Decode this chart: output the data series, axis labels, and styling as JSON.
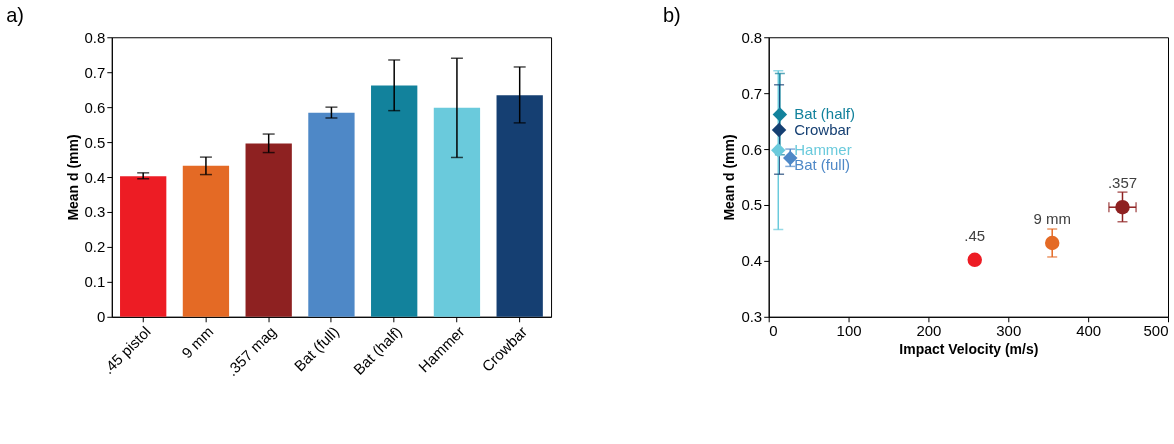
{
  "chart_data": [
    {
      "type": "bar",
      "title": "a)",
      "ylabel": "Mean d (mm)",
      "categories": [
        ".45 pistol",
        "9 mm",
        ".357 mag",
        "Bat (full)",
        "Bat (half)",
        "Hammer",
        "Crowbar"
      ],
      "values": [
        0.402,
        0.432,
        0.496,
        0.584,
        0.662,
        0.598,
        0.634
      ],
      "colors": [
        "#ed1c24",
        "#e46a25",
        "#8e2121",
        "#4e88c7",
        "#12829c",
        "#6acadc",
        "#153f72"
      ],
      "errors": [
        [
          0.395,
          0.412
        ],
        [
          0.407,
          0.457
        ],
        [
          0.47,
          0.523
        ],
        [
          0.569,
          0.6
        ],
        [
          0.59,
          0.735
        ],
        [
          0.456,
          0.74
        ],
        [
          0.555,
          0.715
        ]
      ],
      "ylim": [
        0,
        0.8
      ],
      "yticks": [
        0,
        0.1,
        0.2,
        0.3,
        0.4,
        0.5,
        0.6,
        0.7,
        0.8
      ],
      "grid": false
    },
    {
      "type": "scatter",
      "title": "b)",
      "xlabel": "Impact Velocity (m/s)",
      "ylabel": "Mean d (mm)",
      "xlim": [
        0,
        500
      ],
      "xticks": [
        0,
        100,
        200,
        300,
        400,
        500
      ],
      "ylim": [
        0.3,
        0.8
      ],
      "yticks": [
        0.3,
        0.4,
        0.5,
        0.6,
        0.7,
        0.8
      ],
      "grid": false,
      "series": [
        {
          "name": ".45",
          "color": "#ed1c24",
          "marker": "circle",
          "x": [
            258
          ],
          "values": [
            0.402
          ],
          "errors": [
            null
          ]
        },
        {
          "name": "9 mm",
          "color": "#e46a25",
          "marker": "circle",
          "x": [
            355
          ],
          "values": [
            0.432
          ],
          "errors": [
            [
              0.407,
              0.457
            ]
          ]
        },
        {
          "name": ".357",
          "color": "#8e2121",
          "marker": "circle",
          "x": [
            443
          ],
          "values": [
            0.496
          ],
          "errors": [
            [
              0.47,
              0.523
            ]
          ],
          "xerrors": [
            17
          ]
        },
        {
          "name": "Bat (half)",
          "color": "#12829c",
          "marker": "diamond",
          "x": [
            14
          ],
          "values": [
            0.662
          ],
          "errors": [
            [
              0.59,
              0.735
            ]
          ]
        },
        {
          "name": "Crowbar",
          "color": "#153f72",
          "marker": "diamond",
          "x": [
            13
          ],
          "values": [
            0.634
          ],
          "errors": [
            [
              0.555,
              0.715
            ]
          ]
        },
        {
          "name": "Hammer",
          "color": "#6acadc",
          "marker": "diamond",
          "x": [
            12
          ],
          "values": [
            0.598
          ],
          "errors": [
            [
              0.456,
              0.74
            ]
          ]
        },
        {
          "name": "Bat (full)",
          "color": "#4e88c7",
          "marker": "diamond",
          "x": [
            27
          ],
          "values": [
            0.584
          ],
          "errors": [
            [
              0.569,
              0.6
            ]
          ]
        }
      ]
    }
  ]
}
